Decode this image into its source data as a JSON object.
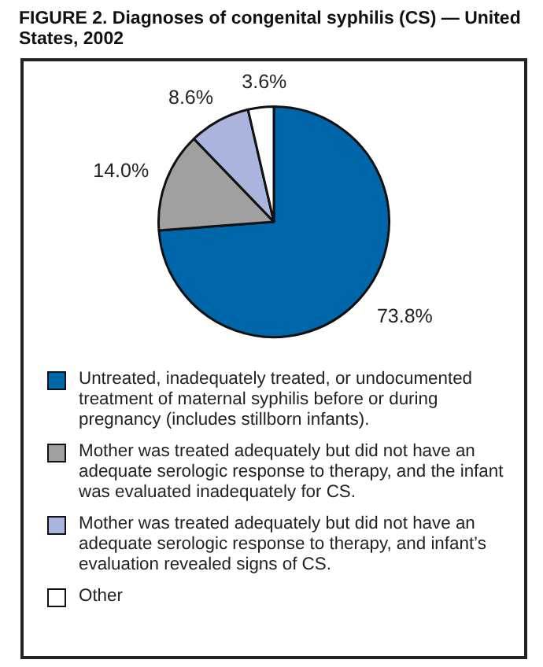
{
  "chart_data": {
    "type": "pie",
    "title": "FIGURE 2. Diagnoses of congenital syphilis (CS) — United States, 2002",
    "categories": [
      "Untreated, inadequately treated, or undocumented treatment of maternal syphilis before or during pregnancy (includes stillborn infants).",
      "Mother was treated adequately but did not have an adequate serologic response to therapy, and the infant was evaluated inadequately for CS.",
      "Mother was treated adequately but did not have an adequate serologic response to therapy, and infant’s evaluation revealed signs of CS.",
      "Other"
    ],
    "values": [
      73.8,
      14.0,
      8.6,
      3.6
    ],
    "value_labels": [
      "73.8%",
      "14.0%",
      "8.6%",
      "3.6%"
    ],
    "colors": [
      "#0066aa",
      "#a0a0a0",
      "#aab4dc",
      "#ffffff"
    ],
    "legend": "bottom"
  }
}
